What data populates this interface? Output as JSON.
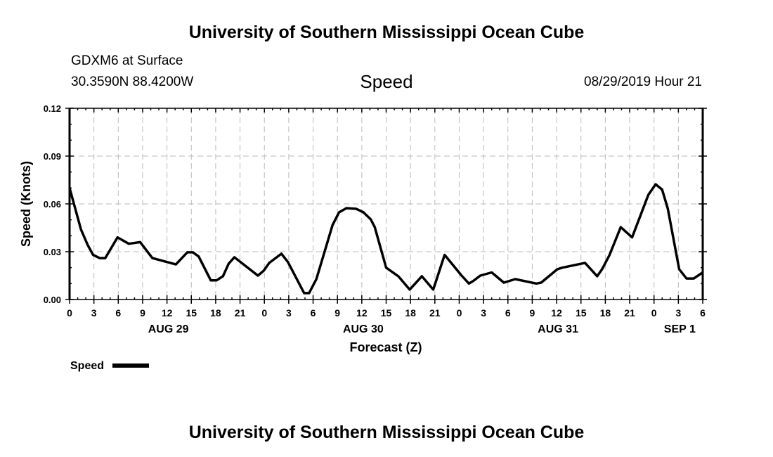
{
  "title_top": "University of Southern Mississippi Ocean Cube",
  "title_bottom": "University of Southern Mississippi Ocean Cube",
  "station": "GDXM6 at Surface",
  "location": "30.3590N 88.4200W",
  "variable": "Speed",
  "datetime": "08/29/2019 Hour 21",
  "legend_label": "Speed",
  "chart_data": {
    "type": "line",
    "title": "Speed",
    "xlabel": "Forecast (Z)",
    "ylabel": "Speed (Knots)",
    "xlim_hours": [
      0,
      78
    ],
    "ylim": [
      0,
      0.12
    ],
    "yticks": [
      "0.00",
      "0.03",
      "0.06",
      "0.09",
      "0.12"
    ],
    "xtick_labels": [
      "0",
      "3",
      "6",
      "9",
      "12",
      "15",
      "18",
      "21",
      "0",
      "3",
      "6",
      "9",
      "12",
      "15",
      "18",
      "21",
      "0",
      "3",
      "6",
      "9",
      "12",
      "15",
      "18",
      "21",
      "0",
      "3",
      "6"
    ],
    "day_labels": [
      {
        "label": "AUG 29",
        "hour": 12
      },
      {
        "label": "AUG 30",
        "hour": 36
      },
      {
        "label": "AUG 31",
        "hour": 60
      },
      {
        "label": "SEP 1",
        "hour": 75
      }
    ],
    "grid": true,
    "legend": "bottom-left",
    "series": [
      {
        "name": "Speed",
        "color": "#000000",
        "hours": [
          0,
          1.4,
          2.25,
          2.9,
          3.7,
          4.4,
          5.9,
          7.3,
          8.7,
          10.2,
          13.1,
          14.5,
          15.2,
          15.9,
          17.4,
          18.1,
          18.9,
          19.6,
          20.3,
          23.2,
          23.9,
          24.6,
          26.1,
          26.9,
          28.9,
          29.5,
          30.4,
          32.4,
          33.2,
          34.1,
          35.3,
          36.2,
          37.1,
          37.6,
          39.0,
          40.5,
          41.9,
          43.4,
          44.8,
          46.2,
          48.3,
          49.2,
          49.7,
          50.6,
          52.0,
          53.5,
          54.9,
          57.5,
          58.1,
          60.1,
          60.7,
          63.5,
          65.0,
          65.6,
          66.5,
          67.9,
          69.3,
          71.3,
          72.2,
          73.0,
          73.7,
          75.1,
          76.0,
          76.9,
          77.3,
          78
        ],
        "values": [
          0.07,
          0.044,
          0.034,
          0.028,
          0.026,
          0.026,
          0.039,
          0.035,
          0.036,
          0.026,
          0.022,
          0.0296,
          0.0296,
          0.027,
          0.012,
          0.012,
          0.0146,
          0.0225,
          0.0265,
          0.015,
          0.018,
          0.023,
          0.0287,
          0.0235,
          0.004,
          0.004,
          0.0128,
          0.0468,
          0.0547,
          0.0573,
          0.0569,
          0.0547,
          0.0503,
          0.0454,
          0.02,
          0.0146,
          0.0062,
          0.0146,
          0.0062,
          0.028,
          0.015,
          0.01,
          0.0115,
          0.015,
          0.017,
          0.0106,
          0.0128,
          0.01,
          0.0106,
          0.019,
          0.02,
          0.023,
          0.0146,
          0.019,
          0.0278,
          0.0454,
          0.039,
          0.0657,
          0.0723,
          0.069,
          0.057,
          0.019,
          0.0132,
          0.0132,
          0.0146,
          0.017
        ]
      }
    ]
  }
}
